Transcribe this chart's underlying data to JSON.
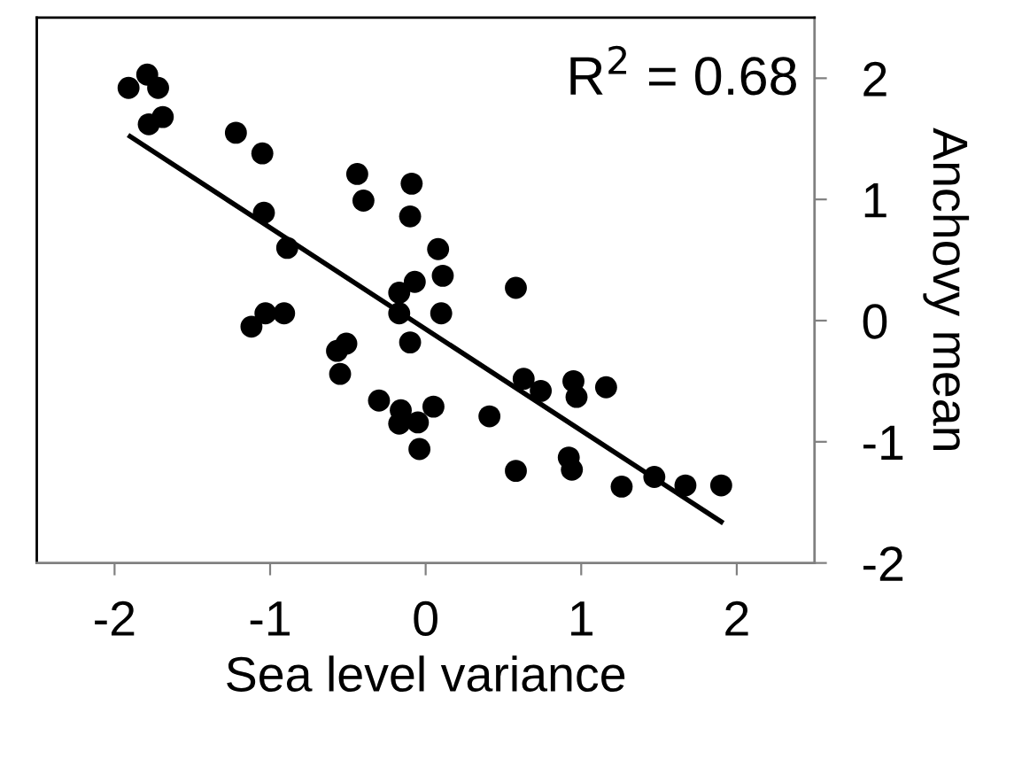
{
  "chart_data": {
    "type": "scatter",
    "xlabel": "Sea level variance",
    "ylabel": "Anchovy mean",
    "annotations": [
      "R$^{2}$ = 0.68"
    ],
    "xlim": [
      -2.5,
      2.5
    ],
    "xticks": [
      -2,
      -1,
      0,
      1,
      2
    ],
    "ylim": [
      -2,
      2.5
    ],
    "yticks": [
      -2,
      -1,
      0,
      1,
      2
    ],
    "grid": false,
    "series": [
      {
        "marker": "circle",
        "color": "#000000",
        "x": [
          -1.91,
          -1.79,
          -1.72,
          -1.78,
          -1.69,
          -1.22,
          -1.05,
          -0.44,
          -0.4,
          -0.09,
          -0.1,
          -1.04,
          -0.89,
          0.08,
          0.11,
          -0.07,
          -0.17,
          -0.17,
          0.1,
          0.58,
          -1.03,
          -0.91,
          -1.12,
          -0.1,
          -0.51,
          -0.57,
          -0.55,
          -0.3,
          -0.16,
          -0.17,
          -0.05,
          0.05,
          -0.04,
          0.41,
          0.58,
          0.63,
          0.74,
          0.95,
          0.97,
          1.16,
          0.92,
          0.94,
          1.26,
          1.47,
          1.67,
          1.9
        ],
        "values": [
          1.92,
          2.03,
          1.92,
          1.62,
          1.68,
          1.55,
          1.38,
          1.21,
          0.99,
          1.13,
          0.86,
          0.89,
          0.6,
          0.59,
          0.37,
          0.32,
          0.23,
          0.06,
          0.06,
          0.27,
          0.06,
          0.06,
          -0.05,
          -0.18,
          -0.19,
          -0.25,
          -0.44,
          -0.66,
          -0.74,
          -0.85,
          -0.84,
          -0.71,
          -1.06,
          -0.79,
          -1.24,
          -0.48,
          -0.58,
          -0.5,
          -0.63,
          -0.55,
          -1.13,
          -1.23,
          -1.37,
          -1.29,
          -1.36,
          -1.36
        ]
      },
      {
        "type": "line",
        "marker": "none",
        "color": "#000000",
        "x": [
          -1.9,
          1.9
        ],
        "values": [
          1.52,
          -1.66
        ]
      }
    ]
  }
}
